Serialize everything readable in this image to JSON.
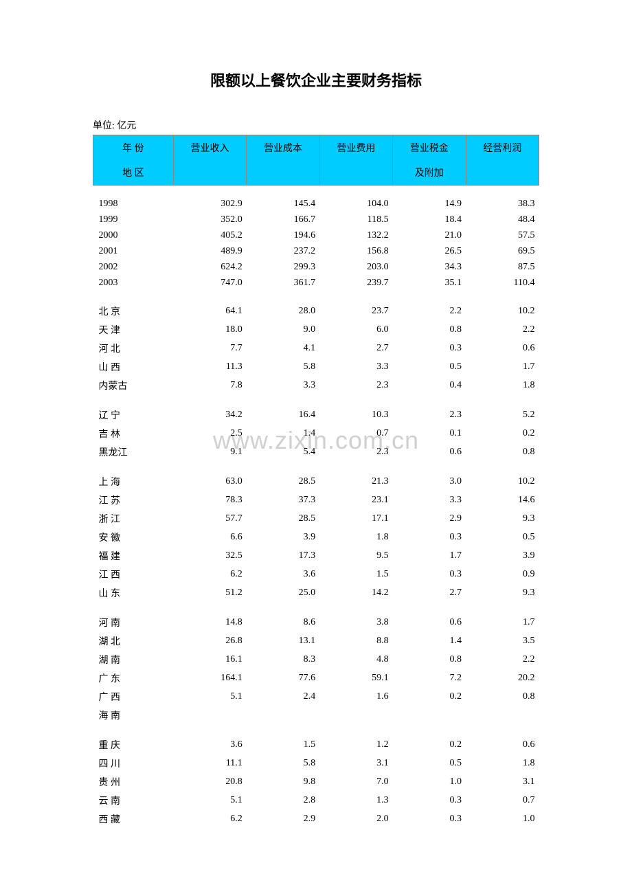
{
  "title": "限额以上餐饮企业主要财务指标",
  "unit": "单位: 亿元",
  "header": {
    "row1": [
      "年    份",
      "营业收入",
      "营业成本",
      "营业费用",
      "营业税金",
      "经营利润"
    ],
    "row2": [
      "地    区",
      "",
      "",
      "",
      "及附加",
      ""
    ]
  },
  "watermark": "www.zixin.com.cn",
  "colors": {
    "header_bg": "#00ccff",
    "border": "#888888",
    "text": "#000000",
    "watermark": "#d0d0d0",
    "background": "#ffffff"
  },
  "years": [
    {
      "label": "1998",
      "v": [
        "302.9",
        "145.4",
        "104.0",
        "14.9",
        "38.3"
      ]
    },
    {
      "label": "1999",
      "v": [
        "352.0",
        "166.7",
        "118.5",
        "18.4",
        "48.4"
      ]
    },
    {
      "label": "2000",
      "v": [
        "405.2",
        "194.6",
        "132.2",
        "21.0",
        "57.5"
      ]
    },
    {
      "label": "2001",
      "v": [
        "489.9",
        "237.2",
        "156.8",
        "26.5",
        "69.5"
      ]
    },
    {
      "label": "2002",
      "v": [
        "624.2",
        "299.3",
        "203.0",
        "34.3",
        "87.5"
      ]
    },
    {
      "label": "2003",
      "v": [
        "747.0",
        "361.7",
        "239.7",
        "35.1",
        "110.4"
      ]
    }
  ],
  "groups": [
    [
      {
        "label": "北  京",
        "chars": 2,
        "v": [
          "64.1",
          "28.0",
          "23.7",
          "2.2",
          "10.2"
        ]
      },
      {
        "label": "天  津",
        "chars": 2,
        "v": [
          "18.0",
          "9.0",
          "6.0",
          "0.8",
          "2.2"
        ]
      },
      {
        "label": "河  北",
        "chars": 2,
        "v": [
          "7.7",
          "4.1",
          "2.7",
          "0.3",
          "0.6"
        ]
      },
      {
        "label": "山  西",
        "chars": 2,
        "v": [
          "11.3",
          "5.8",
          "3.3",
          "0.5",
          "1.7"
        ]
      },
      {
        "label": "内蒙古",
        "chars": 3,
        "v": [
          "7.8",
          "3.3",
          "2.3",
          "0.4",
          "1.8"
        ]
      }
    ],
    [
      {
        "label": "辽  宁",
        "chars": 2,
        "v": [
          "34.2",
          "16.4",
          "10.3",
          "2.3",
          "5.2"
        ]
      },
      {
        "label": "吉  林",
        "chars": 2,
        "v": [
          "2.5",
          "1.4",
          "0.7",
          "0.1",
          "0.2"
        ]
      },
      {
        "label": "黑龙江",
        "chars": 3,
        "v": [
          "9.1",
          "5.4",
          "2.3",
          "0.6",
          "0.8"
        ]
      }
    ],
    [
      {
        "label": "上  海",
        "chars": 2,
        "v": [
          "63.0",
          "28.5",
          "21.3",
          "3.0",
          "10.2"
        ]
      },
      {
        "label": "江  苏",
        "chars": 2,
        "v": [
          "78.3",
          "37.3",
          "23.1",
          "3.3",
          "14.6"
        ]
      },
      {
        "label": "浙  江",
        "chars": 2,
        "v": [
          "57.7",
          "28.5",
          "17.1",
          "2.9",
          "9.3"
        ]
      },
      {
        "label": "安  徽",
        "chars": 2,
        "v": [
          "6.6",
          "3.9",
          "1.8",
          "0.3",
          "0.5"
        ]
      },
      {
        "label": "福  建",
        "chars": 2,
        "v": [
          "32.5",
          "17.3",
          "9.5",
          "1.7",
          "3.9"
        ]
      },
      {
        "label": "江  西",
        "chars": 2,
        "v": [
          "6.2",
          "3.6",
          "1.5",
          "0.3",
          "0.9"
        ]
      },
      {
        "label": "山  东",
        "chars": 2,
        "v": [
          "51.2",
          "25.0",
          "14.2",
          "2.7",
          "9.3"
        ]
      }
    ],
    [
      {
        "label": "河  南",
        "chars": 2,
        "v": [
          "14.8",
          "8.6",
          "3.8",
          "0.6",
          "1.7"
        ]
      },
      {
        "label": "湖  北",
        "chars": 2,
        "v": [
          "26.8",
          "13.1",
          "8.8",
          "1.4",
          "3.5"
        ]
      },
      {
        "label": "湖  南",
        "chars": 2,
        "v": [
          "16.1",
          "8.3",
          "4.8",
          "0.8",
          "2.2"
        ]
      },
      {
        "label": "广  东",
        "chars": 2,
        "v": [
          "164.1",
          "77.6",
          "59.1",
          "7.2",
          "20.2"
        ]
      },
      {
        "label": "广  西",
        "chars": 2,
        "v": [
          "5.1",
          "2.4",
          "1.6",
          "0.2",
          "0.8"
        ]
      },
      {
        "label": "海  南",
        "chars": 2,
        "v": [
          "",
          "",
          "",
          "",
          ""
        ]
      }
    ],
    [
      {
        "label": "重  庆",
        "chars": 2,
        "v": [
          "3.6",
          "1.5",
          "1.2",
          "0.2",
          "0.6"
        ]
      },
      {
        "label": "四  川",
        "chars": 2,
        "v": [
          "11.1",
          "5.8",
          "3.1",
          "0.5",
          "1.8"
        ]
      },
      {
        "label": "贵  州",
        "chars": 2,
        "v": [
          "20.8",
          "9.8",
          "7.0",
          "1.0",
          "3.1"
        ]
      },
      {
        "label": "云  南",
        "chars": 2,
        "v": [
          "5.1",
          "2.8",
          "1.3",
          "0.3",
          "0.7"
        ]
      },
      {
        "label": "西  藏",
        "chars": 2,
        "v": [
          "6.2",
          "2.9",
          "2.0",
          "0.3",
          "1.0"
        ]
      }
    ]
  ]
}
